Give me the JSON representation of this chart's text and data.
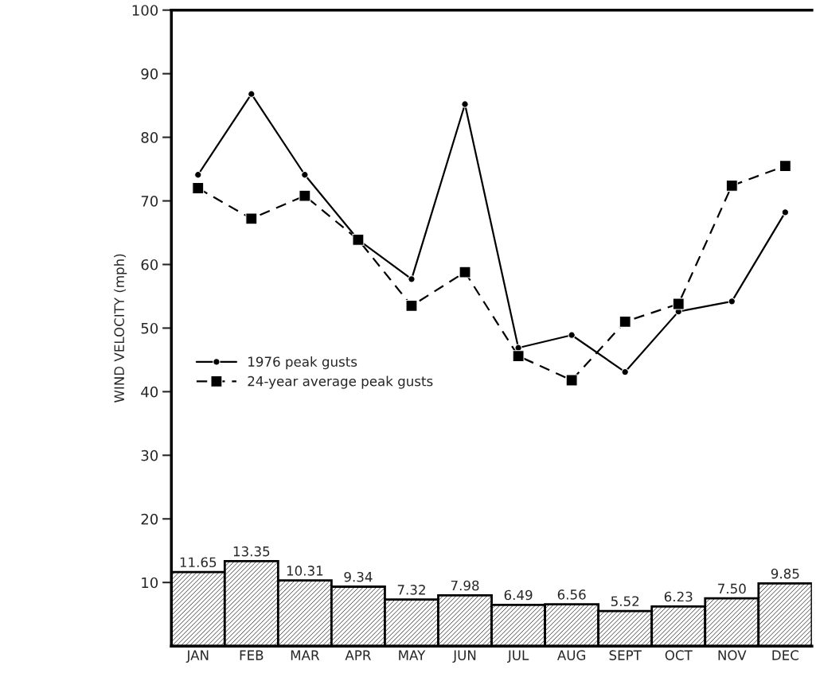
{
  "chart_data": {
    "type": "bar",
    "ylabel": "WIND VELOCITY (mph)",
    "categories": [
      "JAN",
      "FEB",
      "MAR",
      "APR",
      "MAY",
      "JUN",
      "JUL",
      "AUG",
      "SEPT",
      "OCT",
      "NOV",
      "DEC"
    ],
    "series": [
      {
        "color": "#000000",
        "values": [
          11.65,
          13.35,
          10.31,
          9.34,
          7.32,
          7.98,
          6.49,
          6.56,
          5.52,
          6.23,
          7.5,
          9.85
        ],
        "value_labels": [
          "11.65",
          "13.35",
          "10.31",
          "9.34",
          "7.32",
          "7.98",
          "6.49",
          "6.56",
          "5.52",
          "6.23",
          "7.50",
          "9.85"
        ]
      },
      {
        "type": "line",
        "name": "1976 peak gusts",
        "color": "#000000",
        "marker": "circle",
        "line_style": "solid",
        "values": [
          74.1,
          86.8,
          74.1,
          63.9,
          57.7,
          85.2,
          46.9,
          48.9,
          43.1,
          52.6,
          54.2,
          68.2
        ]
      },
      {
        "type": "line",
        "name": "24-year average peak gusts",
        "color": "#000000",
        "marker": "square",
        "line_style": "dashed",
        "values": [
          72.0,
          67.2,
          70.8,
          63.9,
          53.5,
          58.8,
          45.6,
          41.8,
          51.0,
          53.8,
          72.4,
          75.5
        ]
      }
    ],
    "ylim": [
      0,
      100
    ],
    "yticks": [
      10,
      20,
      30,
      40,
      50,
      60,
      70,
      80,
      90,
      100
    ],
    "legend": "center left",
    "grid": false
  }
}
